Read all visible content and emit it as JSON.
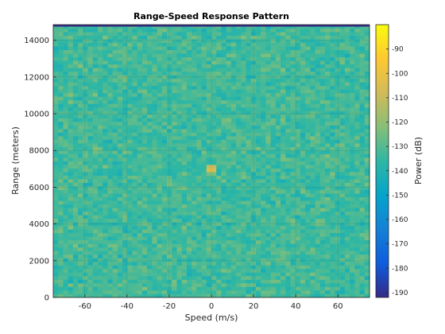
{
  "chart_data": {
    "type": "heatmap",
    "title": "Range-Speed Response Pattern",
    "xlabel": "Speed (m/s)",
    "ylabel": "Range (meters)",
    "xlim": [
      -75,
      75
    ],
    "ylim": [
      0,
      14850
    ],
    "x_ticks": [
      -60,
      -40,
      -20,
      0,
      20,
      40,
      60
    ],
    "y_ticks": [
      0,
      2000,
      4000,
      6000,
      8000,
      10000,
      12000,
      14000
    ],
    "colorbar": {
      "label": "Power (dB)",
      "range": [
        -192,
        -80
      ],
      "ticks": [
        -90,
        -100,
        -110,
        -120,
        -130,
        -140,
        -150,
        -160,
        -170,
        -180,
        -190
      ],
      "colormap": "parula"
    },
    "background_level_db": -133,
    "peak": {
      "speed": 0,
      "range": 7000,
      "power_db": -98
    },
    "grid": true
  },
  "colors": {
    "parula": [
      "#352a87",
      "#0f5cdd",
      "#1481d6",
      "#06a4ca",
      "#2eb7a4",
      "#87bf77",
      "#d1bb59",
      "#fec832",
      "#f9fb0e"
    ]
  }
}
